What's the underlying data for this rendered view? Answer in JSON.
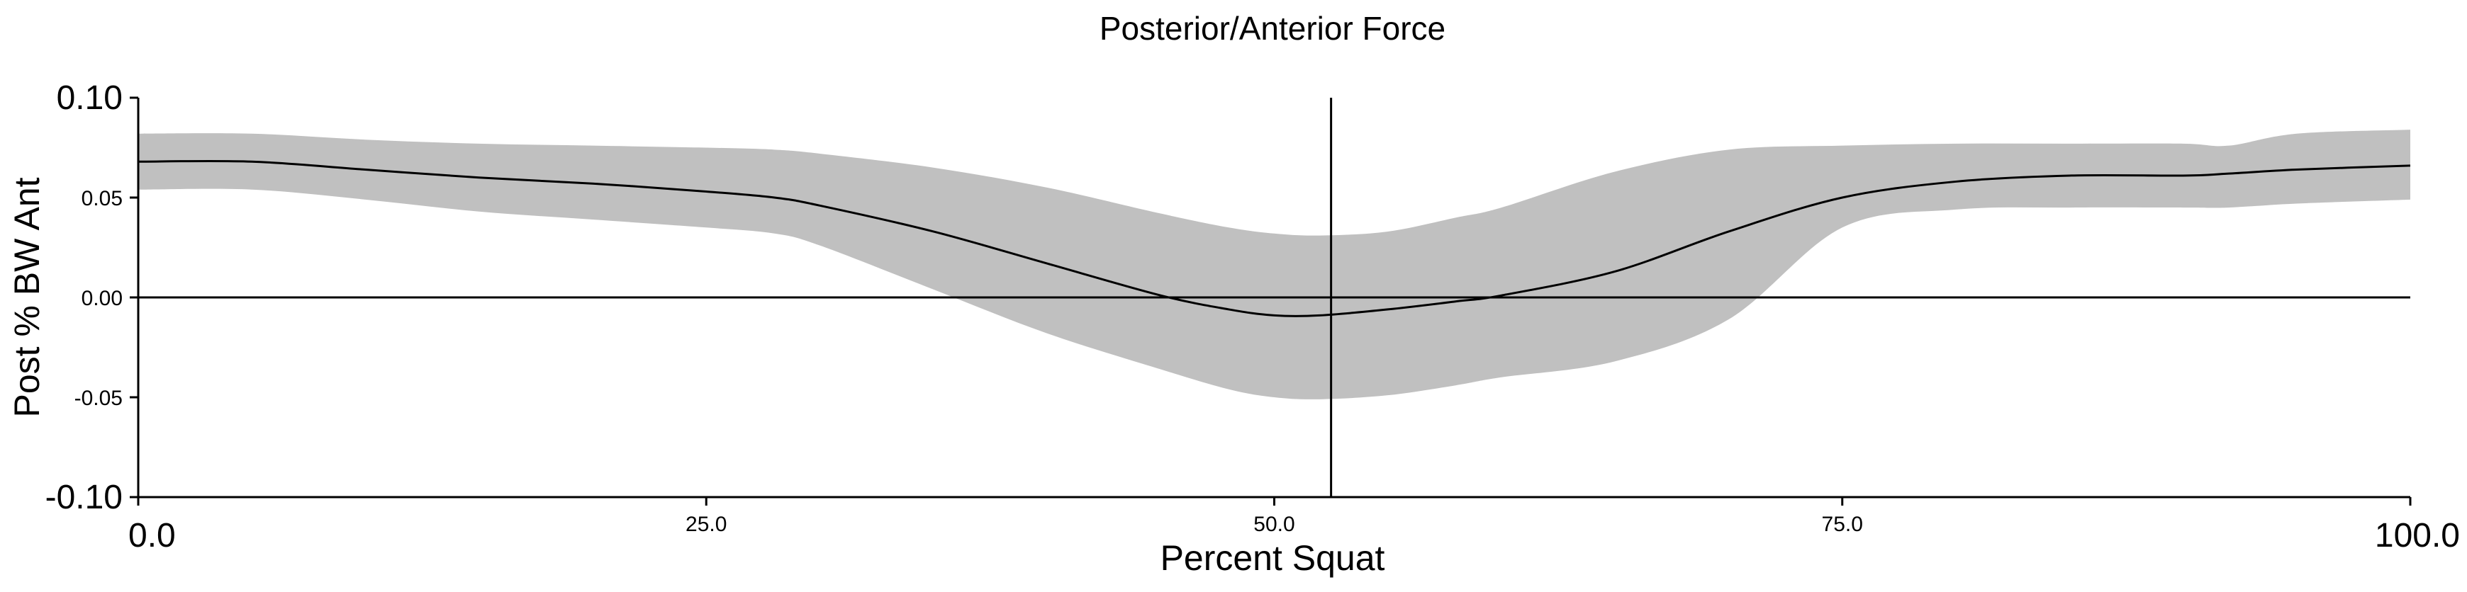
{
  "chart_data": {
    "type": "area",
    "title": "Posterior/Anterior Force",
    "xlabel": "Percent Squat",
    "ylabel": "Post % BW Ant",
    "xlim": [
      0,
      100
    ],
    "ylim": [
      -0.1,
      0.1
    ],
    "x_ticks": [
      {
        "value": 0,
        "label": "0.0",
        "size": "big"
      },
      {
        "value": 25,
        "label": "25.0",
        "size": "small"
      },
      {
        "value": 50,
        "label": "50.0",
        "size": "small"
      },
      {
        "value": 75,
        "label": "75.0",
        "size": "small"
      },
      {
        "value": 100,
        "label": "100.0",
        "size": "big"
      }
    ],
    "y_ticks": [
      {
        "value": 0.1,
        "label": "0.10",
        "size": "big"
      },
      {
        "value": 0.05,
        "label": "0.05",
        "size": "small"
      },
      {
        "value": 0.0,
        "label": "0.00",
        "size": "small"
      },
      {
        "value": -0.05,
        "label": "-0.05",
        "size": "small"
      },
      {
        "value": -0.1,
        "label": "-0.10",
        "size": "big"
      }
    ],
    "zero_line": 0,
    "vertical_marker_x": 52.5,
    "grid": false,
    "band_color": "#c0c0c0",
    "line_color": "#000000",
    "x": [
      0,
      5,
      10,
      15,
      20,
      25,
      28,
      30,
      35,
      40,
      45,
      48,
      50,
      52,
      55,
      58,
      60,
      65,
      70,
      75,
      80,
      85,
      90,
      92,
      95,
      100
    ],
    "series": [
      {
        "role": "mean",
        "values": [
          0.068,
          0.068,
          0.064,
          0.06,
          0.057,
          0.053,
          0.05,
          0.046,
          0.033,
          0.017,
          0.001,
          -0.006,
          -0.009,
          -0.009,
          -0.006,
          -0.002,
          0.001,
          0.013,
          0.033,
          0.05,
          0.058,
          0.061,
          0.061,
          0.062,
          0.064,
          0.066
        ]
      },
      {
        "role": "upper",
        "values": [
          0.082,
          0.082,
          0.079,
          0.077,
          0.076,
          0.075,
          0.074,
          0.072,
          0.065,
          0.055,
          0.042,
          0.035,
          0.032,
          0.031,
          0.033,
          0.04,
          0.045,
          0.063,
          0.074,
          0.076,
          0.077,
          0.077,
          0.077,
          0.076,
          0.082,
          0.084
        ]
      },
      {
        "role": "lower",
        "values": [
          0.054,
          0.054,
          0.049,
          0.043,
          0.039,
          0.035,
          0.032,
          0.026,
          0.004,
          -0.018,
          -0.036,
          -0.046,
          -0.05,
          -0.051,
          -0.049,
          -0.044,
          -0.04,
          -0.032,
          -0.011,
          0.035,
          0.044,
          0.045,
          0.045,
          0.045,
          0.047,
          0.049
        ]
      }
    ]
  }
}
